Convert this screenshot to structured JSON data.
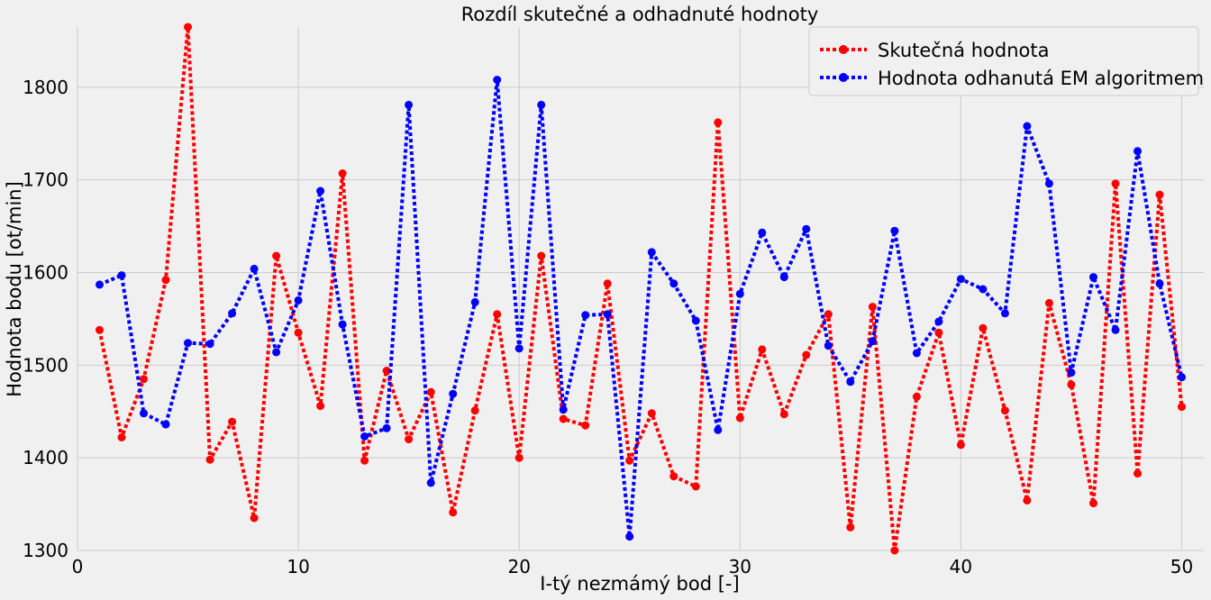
{
  "chart_data": {
    "type": "line",
    "title": "Rozdíl skutečné a odhadnuté hodnoty",
    "xlabel": "I-tý nezmámý bod [-]",
    "ylabel": "Hodnota bodu [ot/min]",
    "xlim": [
      0,
      51
    ],
    "ylim": [
      1300,
      1865
    ],
    "xticks": [
      0,
      10,
      20,
      30,
      40,
      50
    ],
    "yticks": [
      1300,
      1400,
      1500,
      1600,
      1700,
      1800
    ],
    "grid": true,
    "legend_position": "top-right",
    "x": [
      1,
      2,
      3,
      4,
      5,
      6,
      7,
      8,
      9,
      10,
      11,
      12,
      13,
      14,
      15,
      16,
      17,
      18,
      19,
      20,
      21,
      22,
      23,
      24,
      25,
      26,
      27,
      28,
      29,
      30,
      31,
      32,
      33,
      34,
      35,
      36,
      37,
      38,
      39,
      40,
      41,
      42,
      43,
      44,
      45,
      46,
      47,
      48,
      49,
      50
    ],
    "series": [
      {
        "name": "Skutečná hodnota",
        "color": "#ff0000",
        "values": [
          1538,
          1422,
          1485,
          1592,
          1865,
          1398,
          1439,
          1335,
          1618,
          1535,
          1456,
          1707,
          1397,
          1494,
          1420,
          1471,
          1341,
          1451,
          1555,
          1400,
          1618,
          1442,
          1435,
          1588,
          1397,
          1448,
          1380,
          1369,
          1762,
          1443,
          1517,
          1447,
          1511,
          1555,
          1325,
          1563,
          1300,
          1466,
          1535,
          1414,
          1540,
          1451,
          1354,
          1567,
          1479,
          1351,
          1696,
          1383,
          1684,
          1455
        ]
      },
      {
        "name": "Hodnota odhanutá EM algoritmem",
        "color": "#0000ff",
        "values": [
          1587,
          1597,
          1448,
          1436,
          1524,
          1523,
          1556,
          1604,
          1514,
          1570,
          1688,
          1544,
          1423,
          1432,
          1781,
          1373,
          1469,
          1568,
          1808,
          1518,
          1781,
          1452,
          1554,
          1555,
          1315,
          1622,
          1588,
          1548,
          1430,
          1577,
          1643,
          1595,
          1647,
          1521,
          1482,
          1526,
          1645,
          1513,
          1547,
          1593,
          1582,
          1556,
          1758,
          1696,
          1492,
          1595,
          1538,
          1731,
          1588,
          1487
        ]
      }
    ]
  }
}
